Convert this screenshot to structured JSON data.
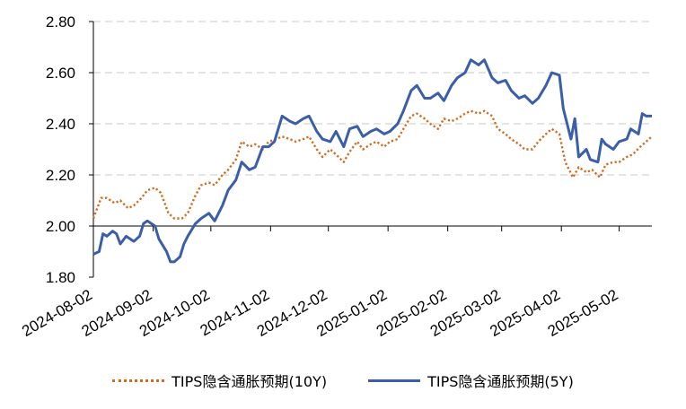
{
  "chart_data": {
    "type": "line",
    "title": "",
    "xlabel": "",
    "ylabel": "",
    "ylim": [
      1.8,
      2.8
    ],
    "y_ticks": [
      "1.80",
      "2.00",
      "2.20",
      "2.40",
      "2.60",
      "2.80"
    ],
    "x_ticks": [
      "2024-08-02",
      "2024-09-02",
      "2024-10-02",
      "2024-11-02",
      "2024-12-02",
      "2025-01-02",
      "2025-02-02",
      "2025-03-02",
      "2025-04-02",
      "2025-05-02"
    ],
    "xlim": [
      "2024-08-02",
      "2025-05-19"
    ],
    "grid": "horizontal dashed",
    "legend_position": "bottom",
    "series": [
      {
        "name": "TIPS隐含通胀预期(10Y)",
        "style": "dotted",
        "color": "#d2691e",
        "points": [
          [
            "2024-08-02",
            2.03
          ],
          [
            "2024-08-06",
            2.11
          ],
          [
            "2024-08-09",
            2.11
          ],
          [
            "2024-08-13",
            2.09
          ],
          [
            "2024-08-16",
            2.1
          ],
          [
            "2024-08-20",
            2.07
          ],
          [
            "2024-08-23",
            2.08
          ],
          [
            "2024-08-27",
            2.11
          ],
          [
            "2024-08-30",
            2.14
          ],
          [
            "2024-09-03",
            2.15
          ],
          [
            "2024-09-06",
            2.13
          ],
          [
            "2024-09-10",
            2.05
          ],
          [
            "2024-09-13",
            2.03
          ],
          [
            "2024-09-17",
            2.03
          ],
          [
            "2024-09-20",
            2.05
          ],
          [
            "2024-09-24",
            2.12
          ],
          [
            "2024-09-27",
            2.16
          ],
          [
            "2024-10-01",
            2.17
          ],
          [
            "2024-10-04",
            2.16
          ],
          [
            "2024-10-08",
            2.2
          ],
          [
            "2024-10-11",
            2.22
          ],
          [
            "2024-10-15",
            2.26
          ],
          [
            "2024-10-18",
            2.33
          ],
          [
            "2024-10-22",
            2.31
          ],
          [
            "2024-10-25",
            2.32
          ],
          [
            "2024-10-29",
            2.3
          ],
          [
            "2024-11-01",
            2.33
          ],
          [
            "2024-11-05",
            2.34
          ],
          [
            "2024-11-08",
            2.35
          ],
          [
            "2024-11-12",
            2.34
          ],
          [
            "2024-11-15",
            2.33
          ],
          [
            "2024-11-19",
            2.34
          ],
          [
            "2024-11-22",
            2.35
          ],
          [
            "2024-11-26",
            2.3
          ],
          [
            "2024-11-29",
            2.27
          ],
          [
            "2024-12-03",
            2.3
          ],
          [
            "2024-12-06",
            2.28
          ],
          [
            "2024-12-10",
            2.25
          ],
          [
            "2024-12-13",
            2.29
          ],
          [
            "2024-12-17",
            2.33
          ],
          [
            "2024-12-20",
            2.3
          ],
          [
            "2024-12-24",
            2.32
          ],
          [
            "2024-12-27",
            2.33
          ],
          [
            "2024-12-31",
            2.31
          ],
          [
            "2025-01-03",
            2.33
          ],
          [
            "2025-01-07",
            2.34
          ],
          [
            "2025-01-10",
            2.38
          ],
          [
            "2025-01-14",
            2.43
          ],
          [
            "2025-01-17",
            2.44
          ],
          [
            "2025-01-21",
            2.42
          ],
          [
            "2025-01-24",
            2.4
          ],
          [
            "2025-01-28",
            2.38
          ],
          [
            "2025-01-31",
            2.42
          ],
          [
            "2025-02-04",
            2.41
          ],
          [
            "2025-02-07",
            2.42
          ],
          [
            "2025-02-11",
            2.44
          ],
          [
            "2025-02-14",
            2.45
          ],
          [
            "2025-02-18",
            2.44
          ],
          [
            "2025-02-21",
            2.45
          ],
          [
            "2025-02-25",
            2.43
          ],
          [
            "2025-02-28",
            2.38
          ],
          [
            "2025-03-04",
            2.36
          ],
          [
            "2025-03-07",
            2.34
          ],
          [
            "2025-03-11",
            2.32
          ],
          [
            "2025-03-14",
            2.3
          ],
          [
            "2025-03-18",
            2.3
          ],
          [
            "2025-03-21",
            2.33
          ],
          [
            "2025-03-25",
            2.36
          ],
          [
            "2025-03-28",
            2.38
          ],
          [
            "2025-04-01",
            2.36
          ],
          [
            "2025-04-04",
            2.25
          ],
          [
            "2025-04-08",
            2.19
          ],
          [
            "2025-04-11",
            2.23
          ],
          [
            "2025-04-15",
            2.21
          ],
          [
            "2025-04-18",
            2.22
          ],
          [
            "2025-04-22",
            2.19
          ],
          [
            "2025-04-25",
            2.24
          ],
          [
            "2025-04-29",
            2.25
          ],
          [
            "2025-05-02",
            2.25
          ],
          [
            "2025-05-06",
            2.27
          ],
          [
            "2025-05-09",
            2.28
          ],
          [
            "2025-05-13",
            2.31
          ],
          [
            "2025-05-16",
            2.33
          ],
          [
            "2025-05-19",
            2.35
          ]
        ]
      },
      {
        "name": "TIPS隐含通胀预期(5Y)",
        "style": "solid",
        "color": "#3a5ea8",
        "points": [
          [
            "2024-08-02",
            1.89
          ],
          [
            "2024-08-05",
            1.9
          ],
          [
            "2024-08-07",
            1.97
          ],
          [
            "2024-08-09",
            1.96
          ],
          [
            "2024-08-12",
            1.98
          ],
          [
            "2024-08-14",
            1.97
          ],
          [
            "2024-08-16",
            1.93
          ],
          [
            "2024-08-19",
            1.96
          ],
          [
            "2024-08-21",
            1.95
          ],
          [
            "2024-08-23",
            1.94
          ],
          [
            "2024-08-26",
            1.96
          ],
          [
            "2024-08-28",
            2.01
          ],
          [
            "2024-08-30",
            2.02
          ],
          [
            "2024-09-03",
            2.0
          ],
          [
            "2024-09-05",
            1.95
          ],
          [
            "2024-09-09",
            1.9
          ],
          [
            "2024-09-11",
            1.86
          ],
          [
            "2024-09-13",
            1.86
          ],
          [
            "2024-09-16",
            1.88
          ],
          [
            "2024-09-18",
            1.93
          ],
          [
            "2024-09-20",
            1.96
          ],
          [
            "2024-09-24",
            2.01
          ],
          [
            "2024-09-27",
            2.03
          ],
          [
            "2024-10-01",
            2.05
          ],
          [
            "2024-10-04",
            2.02
          ],
          [
            "2024-10-08",
            2.08
          ],
          [
            "2024-10-11",
            2.14
          ],
          [
            "2024-10-15",
            2.18
          ],
          [
            "2024-10-18",
            2.25
          ],
          [
            "2024-10-22",
            2.22
          ],
          [
            "2024-10-25",
            2.23
          ],
          [
            "2024-10-29",
            2.31
          ],
          [
            "2024-11-01",
            2.31
          ],
          [
            "2024-11-04",
            2.33
          ],
          [
            "2024-11-06",
            2.38
          ],
          [
            "2024-11-08",
            2.43
          ],
          [
            "2024-11-12",
            2.41
          ],
          [
            "2024-11-15",
            2.4
          ],
          [
            "2024-11-19",
            2.42
          ],
          [
            "2024-11-22",
            2.43
          ],
          [
            "2024-11-26",
            2.37
          ],
          [
            "2024-11-29",
            2.34
          ],
          [
            "2024-12-03",
            2.33
          ],
          [
            "2024-12-06",
            2.37
          ],
          [
            "2024-12-10",
            2.31
          ],
          [
            "2024-12-13",
            2.38
          ],
          [
            "2024-12-17",
            2.39
          ],
          [
            "2024-12-20",
            2.35
          ],
          [
            "2024-12-24",
            2.37
          ],
          [
            "2024-12-27",
            2.38
          ],
          [
            "2024-12-31",
            2.36
          ],
          [
            "2025-01-03",
            2.37
          ],
          [
            "2025-01-07",
            2.4
          ],
          [
            "2025-01-10",
            2.45
          ],
          [
            "2025-01-14",
            2.53
          ],
          [
            "2025-01-17",
            2.55
          ],
          [
            "2025-01-21",
            2.5
          ],
          [
            "2025-01-24",
            2.5
          ],
          [
            "2025-01-28",
            2.52
          ],
          [
            "2025-01-31",
            2.49
          ],
          [
            "2025-02-04",
            2.55
          ],
          [
            "2025-02-07",
            2.58
          ],
          [
            "2025-02-11",
            2.6
          ],
          [
            "2025-02-14",
            2.65
          ],
          [
            "2025-02-18",
            2.63
          ],
          [
            "2025-02-21",
            2.65
          ],
          [
            "2025-02-25",
            2.58
          ],
          [
            "2025-02-28",
            2.56
          ],
          [
            "2025-03-04",
            2.57
          ],
          [
            "2025-03-07",
            2.53
          ],
          [
            "2025-03-11",
            2.5
          ],
          [
            "2025-03-14",
            2.51
          ],
          [
            "2025-03-18",
            2.48
          ],
          [
            "2025-03-21",
            2.5
          ],
          [
            "2025-03-25",
            2.55
          ],
          [
            "2025-03-28",
            2.6
          ],
          [
            "2025-04-01",
            2.59
          ],
          [
            "2025-04-03",
            2.46
          ],
          [
            "2025-04-07",
            2.34
          ],
          [
            "2025-04-09",
            2.42
          ],
          [
            "2025-04-11",
            2.27
          ],
          [
            "2025-04-15",
            2.3
          ],
          [
            "2025-04-17",
            2.26
          ],
          [
            "2025-04-21",
            2.25
          ],
          [
            "2025-04-23",
            2.34
          ],
          [
            "2025-04-25",
            2.32
          ],
          [
            "2025-04-29",
            2.3
          ],
          [
            "2025-05-02",
            2.33
          ],
          [
            "2025-05-06",
            2.34
          ],
          [
            "2025-05-08",
            2.38
          ],
          [
            "2025-05-12",
            2.36
          ],
          [
            "2025-05-14",
            2.44
          ],
          [
            "2025-05-16",
            2.43
          ],
          [
            "2025-05-19",
            2.43
          ]
        ]
      }
    ]
  }
}
